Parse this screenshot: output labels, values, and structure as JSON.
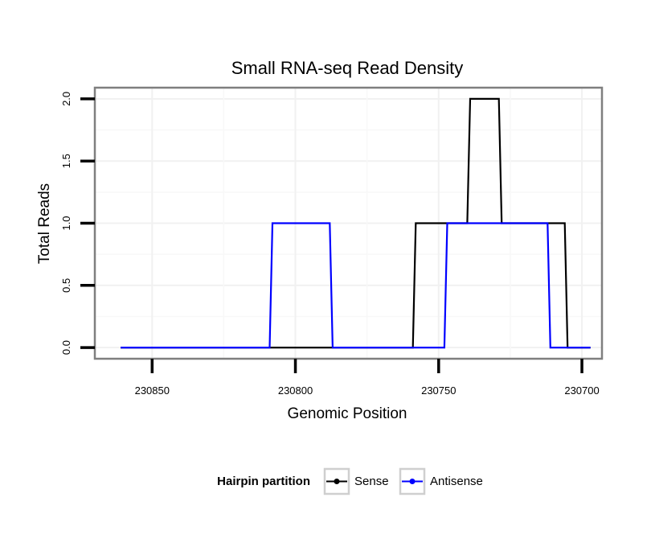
{
  "chart_data": {
    "type": "line",
    "title": "Small RNA-seq Read Density",
    "xlabel": "Genomic Position",
    "ylabel": "Total Reads",
    "xlim": [
      230870,
      230693
    ],
    "x_reversed": true,
    "ylim": [
      -0.09,
      2.09
    ],
    "x_ticks": [
      230850,
      230800,
      230750,
      230700
    ],
    "x_tick_labels": [
      "230850",
      "230800",
      "230750",
      "230700"
    ],
    "y_ticks": [
      0.0,
      0.5,
      1.0,
      1.5,
      2.0
    ],
    "y_tick_labels": [
      "0.0",
      "0.5",
      "1.0",
      "1.5",
      "2.0"
    ],
    "grid": true,
    "legend": {
      "title": "Hairpin partition",
      "position": "bottom",
      "entries": [
        "Sense",
        "Antisense"
      ]
    },
    "series": [
      {
        "name": "Sense",
        "color": "#000000",
        "x": [
          230861,
          230759,
          230758,
          230740,
          230739,
          230729,
          230728,
          230718,
          230717,
          230706,
          230705,
          230697
        ],
        "y": [
          0,
          0,
          1,
          1,
          2,
          2,
          1,
          1,
          1,
          1,
          0,
          0
        ]
      },
      {
        "name": "Antisense",
        "color": "#0000ff",
        "x": [
          230861,
          230809,
          230808,
          230788,
          230787,
          230748,
          230747,
          230727,
          230726,
          230712,
          230711,
          230697
        ],
        "y": [
          0,
          0,
          1,
          1,
          0,
          0,
          1,
          1,
          1,
          1,
          0,
          0
        ]
      }
    ]
  }
}
